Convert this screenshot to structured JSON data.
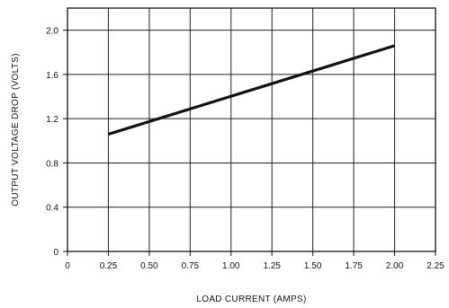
{
  "chart_data": {
    "type": "line",
    "xlabel": "LOAD CURRENT (AMPS)",
    "ylabel": "OUTPUT VOLTAGE DROP (VOLTS)",
    "xlim": [
      0,
      2.25
    ],
    "ylim": [
      0,
      2.2
    ],
    "x_ticks": [
      {
        "value": 0,
        "label": "0"
      },
      {
        "value": 0.25,
        "label": "0.25"
      },
      {
        "value": 0.5,
        "label": "0.50"
      },
      {
        "value": 0.75,
        "label": "0.75"
      },
      {
        "value": 1.0,
        "label": "1.00"
      },
      {
        "value": 1.25,
        "label": "1.25"
      },
      {
        "value": 1.5,
        "label": "1.50"
      },
      {
        "value": 1.75,
        "label": "1.75"
      },
      {
        "value": 2.0,
        "label": "2.00"
      },
      {
        "value": 2.25,
        "label": "2.25"
      }
    ],
    "y_ticks": [
      {
        "value": 0,
        "label": "0"
      },
      {
        "value": 0.4,
        "label": "0.4"
      },
      {
        "value": 0.8,
        "label": "0.8"
      },
      {
        "value": 1.2,
        "label": "1.2"
      },
      {
        "value": 1.6,
        "label": "1.6"
      },
      {
        "value": 2.0,
        "label": "2.0"
      }
    ],
    "grid": true,
    "series": [
      {
        "x": [
          0.25,
          2.0
        ],
        "y": [
          1.06,
          1.86
        ],
        "color": "#111111"
      }
    ]
  }
}
